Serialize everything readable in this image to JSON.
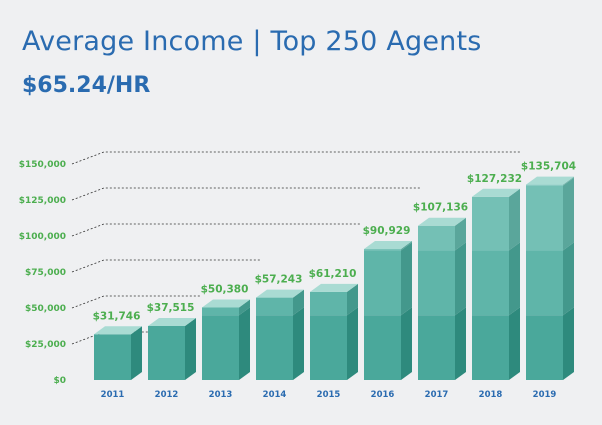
{
  "header": {
    "title": "Average Income | Top 250 Agents",
    "subtitle": "$65.24/HR"
  },
  "colors": {
    "background": "#eff0f2",
    "title": "#2a6bb0",
    "labels_green": "#4cae4f",
    "bar_front": [
      "#4aa89b",
      "#5fb5a9",
      "#74c0b5",
      "#89cbc2",
      "#9dd5cd"
    ],
    "bar_side": [
      "#2e8a7d",
      "#43988c",
      "#5aa69b",
      "#6fb3a9",
      "#84c0b7"
    ],
    "bar_top": "#a9dbd3",
    "dotted_line": "#333333"
  },
  "chart_data": {
    "type": "bar",
    "title": "Average Income | Top 250 Agents",
    "subtitle": "$65.24/HR",
    "categories": [
      "2011",
      "2012",
      "2013",
      "2014",
      "2015",
      "2016",
      "2017",
      "2018",
      "2019"
    ],
    "values": [
      31746,
      37515,
      50380,
      57243,
      61210,
      90929,
      107136,
      127232,
      135704
    ],
    "data_labels": [
      "$31,746",
      "$37,515",
      "$50,380",
      "$57,243",
      "$61,210",
      "$90,929",
      "$107,136",
      "$127,232",
      "$135,704"
    ],
    "y_ticks": [
      "$0",
      "$25,000",
      "$50,000",
      "$75,000",
      "$100,000",
      "$125,000",
      "$150,000"
    ],
    "y_tick_values": [
      0,
      25000,
      50000,
      75000,
      100000,
      125000,
      150000
    ],
    "ylim": [
      0,
      150000
    ],
    "xlabel": "",
    "ylabel": "",
    "grid": "dashed lines at tick values, y-axis side only",
    "legend": "none",
    "style": "3d stacked-segment bars"
  }
}
